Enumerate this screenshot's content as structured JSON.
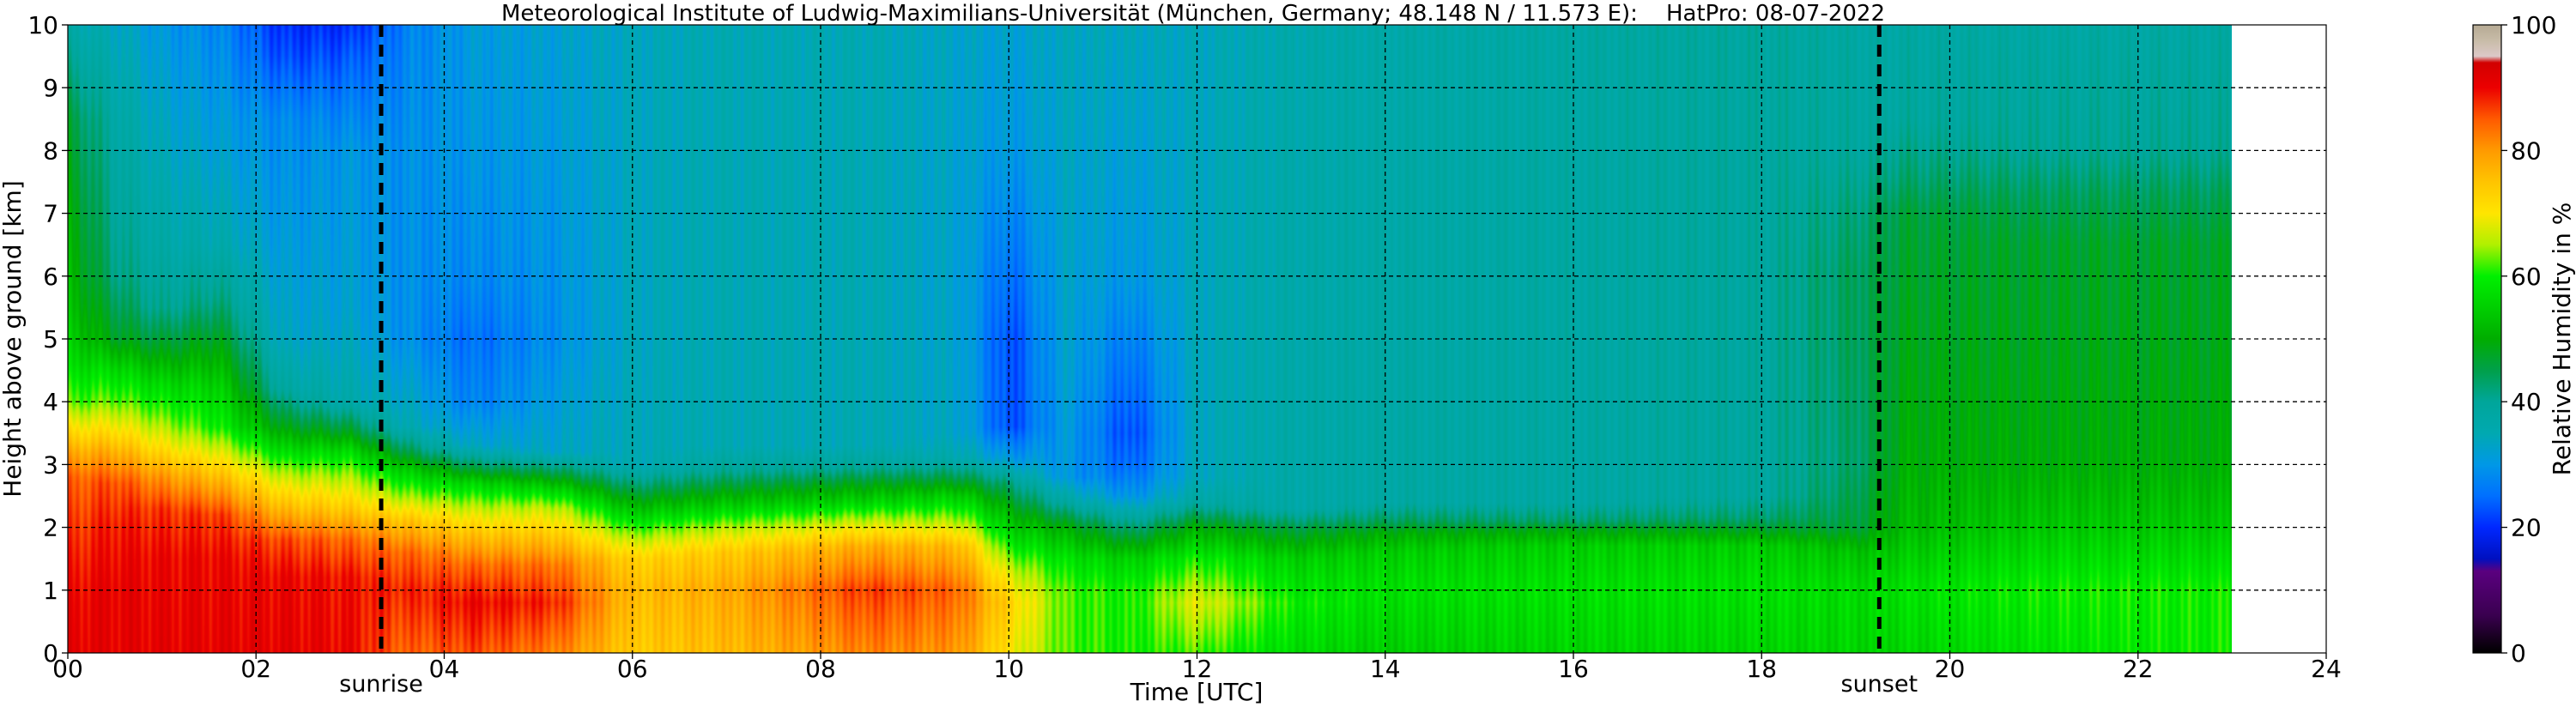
{
  "chart_data": {
    "type": "heatmap",
    "title": "Meteorological Institute of Ludwig-Maximilians-Universität (München, Germany; 48.148 N / 11.573 E):    HatPro: 08-07-2022",
    "xlabel": "Time [UTC]",
    "ylabel": "Height above ground [km]",
    "xlim": [
      0,
      24
    ],
    "ylim": [
      0,
      10
    ],
    "data_extent_x": [
      0,
      23
    ],
    "x_ticks": [
      "00",
      "02",
      "04",
      "06",
      "08",
      "10",
      "12",
      "14",
      "16",
      "18",
      "20",
      "22",
      "24"
    ],
    "x_tick_values": [
      0,
      2,
      4,
      6,
      8,
      10,
      12,
      14,
      16,
      18,
      20,
      22,
      24
    ],
    "y_ticks": [
      "0",
      "1",
      "2",
      "3",
      "4",
      "5",
      "6",
      "7",
      "8",
      "9",
      "10"
    ],
    "y_tick_values": [
      0,
      1,
      2,
      3,
      4,
      5,
      6,
      7,
      8,
      9,
      10
    ],
    "grid": true,
    "vlines": [
      {
        "x": 3.33,
        "label": "sunrise"
      },
      {
        "x": 19.25,
        "label": "sunset"
      }
    ],
    "colorbar": {
      "label": "Relative Humidity in %",
      "range": [
        0,
        100
      ],
      "ticks": [
        "0",
        "20",
        "40",
        "60",
        "80",
        "100"
      ],
      "tick_values": [
        0,
        20,
        40,
        60,
        80,
        100
      ],
      "stops": [
        {
          "v": 0,
          "c": "#000000"
        },
        {
          "v": 2.5,
          "c": "#180020"
        },
        {
          "v": 6,
          "c": "#3a0050"
        },
        {
          "v": 13,
          "c": "#5a007f"
        },
        {
          "v": 15,
          "c": "#0010c0"
        },
        {
          "v": 20,
          "c": "#0028ff"
        },
        {
          "v": 25,
          "c": "#0070ff"
        },
        {
          "v": 30,
          "c": "#0098e6"
        },
        {
          "v": 35,
          "c": "#00a9b0"
        },
        {
          "v": 40,
          "c": "#00a69a"
        },
        {
          "v": 45,
          "c": "#00a04a"
        },
        {
          "v": 50,
          "c": "#00ad00"
        },
        {
          "v": 55,
          "c": "#00cf00"
        },
        {
          "v": 60,
          "c": "#00f000"
        },
        {
          "v": 65,
          "c": "#b0f000"
        },
        {
          "v": 70,
          "c": "#ffe500"
        },
        {
          "v": 75,
          "c": "#ffc400"
        },
        {
          "v": 80,
          "c": "#ff9a00"
        },
        {
          "v": 85,
          "c": "#ff5a00"
        },
        {
          "v": 90,
          "c": "#ec0000"
        },
        {
          "v": 94,
          "c": "#d10000"
        },
        {
          "v": 95,
          "c": "#dcc8c8"
        },
        {
          "v": 97.5,
          "c": "#c8bca8"
        },
        {
          "v": 100,
          "c": "#b5a993"
        }
      ]
    },
    "humidity_profiles": [
      {
        "t": 0.0,
        "rh": [
          [
            0,
            91
          ],
          [
            0.8,
            90
          ],
          [
            1.5,
            88
          ],
          [
            2.2,
            86
          ],
          [
            2.8,
            84
          ],
          [
            3.2,
            78
          ],
          [
            3.6,
            70
          ],
          [
            4.0,
            62
          ],
          [
            4.6,
            57
          ],
          [
            5.5,
            53
          ],
          [
            7.0,
            50
          ],
          [
            8.5,
            46
          ],
          [
            9.3,
            41
          ],
          [
            10,
            37
          ]
        ]
      },
      {
        "t": 0.5,
        "rh": [
          [
            0,
            91
          ],
          [
            1.0,
            91
          ],
          [
            2.0,
            89
          ],
          [
            2.7,
            86
          ],
          [
            3.2,
            78
          ],
          [
            3.6,
            70
          ],
          [
            4.0,
            63
          ],
          [
            4.5,
            57
          ],
          [
            5.0,
            48
          ],
          [
            6.0,
            42
          ],
          [
            7.0,
            40
          ],
          [
            8.5,
            38
          ],
          [
            10,
            34
          ]
        ]
      },
      {
        "t": 1.0,
        "rh": [
          [
            0,
            91
          ],
          [
            1.5,
            90
          ],
          [
            2.3,
            87
          ],
          [
            2.8,
            80
          ],
          [
            3.3,
            70
          ],
          [
            3.8,
            62
          ],
          [
            4.3,
            56
          ],
          [
            4.8,
            48
          ],
          [
            5.5,
            40
          ],
          [
            6.5,
            37
          ],
          [
            8.0,
            34
          ],
          [
            10,
            30
          ]
        ]
      },
      {
        "t": 1.6,
        "rh": [
          [
            0,
            91
          ],
          [
            1.5,
            90
          ],
          [
            2.2,
            87
          ],
          [
            2.7,
            78
          ],
          [
            3.2,
            68
          ],
          [
            3.6,
            60
          ],
          [
            4.2,
            56
          ],
          [
            4.8,
            50
          ],
          [
            5.6,
            42
          ],
          [
            6.5,
            36
          ],
          [
            8.0,
            32
          ],
          [
            10,
            28
          ]
        ]
      },
      {
        "t": 2.3,
        "rh": [
          [
            0,
            91
          ],
          [
            1.2,
            90
          ],
          [
            1.8,
            86
          ],
          [
            2.3,
            76
          ],
          [
            2.8,
            66
          ],
          [
            3.2,
            57
          ],
          [
            3.6,
            48
          ],
          [
            4.2,
            38
          ],
          [
            5.0,
            33
          ],
          [
            7.0,
            30
          ],
          [
            8.5,
            28
          ],
          [
            9.5,
            22
          ],
          [
            10,
            20
          ]
        ]
      },
      {
        "t": 3.0,
        "rh": [
          [
            0,
            90
          ],
          [
            1.2,
            89
          ],
          [
            1.8,
            84
          ],
          [
            2.3,
            74
          ],
          [
            2.8,
            65
          ],
          [
            3.2,
            57
          ],
          [
            3.5,
            48
          ],
          [
            4.0,
            36
          ],
          [
            5.5,
            32
          ],
          [
            8.0,
            30
          ],
          [
            9.5,
            23
          ],
          [
            10,
            20
          ]
        ]
      },
      {
        "t": 3.6,
        "rh": [
          [
            0,
            84
          ],
          [
            1.0,
            88
          ],
          [
            1.6,
            84
          ],
          [
            2.1,
            75
          ],
          [
            2.5,
            64
          ],
          [
            2.9,
            55
          ],
          [
            3.2,
            45
          ],
          [
            3.6,
            35
          ],
          [
            5.0,
            29
          ],
          [
            8.0,
            29
          ],
          [
            10,
            27
          ]
        ]
      },
      {
        "t": 4.3,
        "rh": [
          [
            0,
            86
          ],
          [
            0.8,
            90
          ],
          [
            1.4,
            84
          ],
          [
            1.9,
            75
          ],
          [
            2.3,
            66
          ],
          [
            2.7,
            56
          ],
          [
            2.9,
            47
          ],
          [
            3.3,
            33
          ],
          [
            4.0,
            27
          ],
          [
            5.0,
            25
          ],
          [
            6.0,
            28
          ],
          [
            8.0,
            30
          ],
          [
            10,
            31
          ]
        ]
      },
      {
        "t": 5.2,
        "rh": [
          [
            0,
            82
          ],
          [
            0.8,
            88
          ],
          [
            1.4,
            83
          ],
          [
            1.9,
            74
          ],
          [
            2.3,
            66
          ],
          [
            2.6,
            56
          ],
          [
            2.85,
            46
          ],
          [
            3.2,
            33
          ],
          [
            5.0,
            29
          ],
          [
            8.0,
            31
          ],
          [
            10,
            32
          ]
        ]
      },
      {
        "t": 6.0,
        "rh": [
          [
            0,
            74
          ],
          [
            1.0,
            76
          ],
          [
            1.5,
            73
          ],
          [
            1.8,
            66
          ],
          [
            2.1,
            58
          ],
          [
            2.4,
            50
          ],
          [
            2.7,
            42
          ],
          [
            3.0,
            35
          ],
          [
            5.0,
            34
          ],
          [
            8.0,
            34
          ],
          [
            10,
            34
          ]
        ]
      },
      {
        "t": 7.0,
        "rh": [
          [
            0,
            76
          ],
          [
            1.0,
            78
          ],
          [
            1.6,
            74
          ],
          [
            2.0,
            65
          ],
          [
            2.3,
            56
          ],
          [
            2.6,
            48
          ],
          [
            2.9,
            40
          ],
          [
            3.3,
            35
          ],
          [
            10,
            35
          ]
        ]
      },
      {
        "t": 8.5,
        "rh": [
          [
            0,
            82
          ],
          [
            1.0,
            87
          ],
          [
            1.7,
            78
          ],
          [
            2.1,
            66
          ],
          [
            2.4,
            56
          ],
          [
            2.7,
            48
          ],
          [
            2.95,
            40
          ],
          [
            3.3,
            35
          ],
          [
            10,
            35
          ]
        ]
      },
      {
        "t": 9.5,
        "rh": [
          [
            0,
            80
          ],
          [
            1.0,
            84
          ],
          [
            1.7,
            76
          ],
          [
            2.1,
            65
          ],
          [
            2.5,
            55
          ],
          [
            2.8,
            45
          ],
          [
            3.1,
            36
          ],
          [
            3.5,
            33
          ],
          [
            6.0,
            32
          ],
          [
            10,
            33
          ]
        ]
      },
      {
        "t": 10.0,
        "rh": [
          [
            0,
            70
          ],
          [
            0.8,
            73
          ],
          [
            1.3,
            67
          ],
          [
            1.8,
            58
          ],
          [
            2.3,
            50
          ],
          [
            2.7,
            42
          ],
          [
            3.1,
            30
          ],
          [
            3.6,
            22
          ],
          [
            5.0,
            22
          ],
          [
            6.5,
            26
          ],
          [
            8.0,
            30
          ],
          [
            10,
            32
          ]
        ]
      },
      {
        "t": 10.6,
        "rh": [
          [
            0,
            62
          ],
          [
            1.0,
            62
          ],
          [
            1.5,
            58
          ],
          [
            2.0,
            50
          ],
          [
            2.4,
            38
          ],
          [
            2.8,
            30
          ],
          [
            4.5,
            32
          ],
          [
            10,
            34
          ]
        ]
      },
      {
        "t": 11.3,
        "rh": [
          [
            0,
            60
          ],
          [
            1.0,
            60
          ],
          [
            1.5,
            55
          ],
          [
            2.0,
            42
          ],
          [
            2.5,
            29
          ],
          [
            3.0,
            24
          ],
          [
            3.5,
            22
          ],
          [
            4.5,
            25
          ],
          [
            6.0,
            30
          ],
          [
            10,
            34
          ]
        ]
      },
      {
        "t": 12.0,
        "rh": [
          [
            0,
            62
          ],
          [
            0.8,
            68
          ],
          [
            1.5,
            60
          ],
          [
            2.0,
            50
          ],
          [
            2.4,
            38
          ],
          [
            2.8,
            34
          ],
          [
            10,
            34
          ]
        ]
      },
      {
        "t": 13.0,
        "rh": [
          [
            0,
            57
          ],
          [
            0.8,
            60
          ],
          [
            1.5,
            55
          ],
          [
            2.0,
            45
          ],
          [
            2.3,
            37
          ],
          [
            10,
            36
          ]
        ]
      },
      {
        "t": 14.0,
        "rh": [
          [
            0,
            55
          ],
          [
            1.0,
            58
          ],
          [
            1.6,
            55
          ],
          [
            1.9,
            50
          ],
          [
            2.1,
            44
          ],
          [
            2.4,
            38
          ],
          [
            10,
            37
          ]
        ]
      },
      {
        "t": 16.0,
        "rh": [
          [
            0,
            56
          ],
          [
            1.0,
            58
          ],
          [
            1.7,
            55
          ],
          [
            1.95,
            49
          ],
          [
            2.1,
            43
          ],
          [
            2.4,
            38
          ],
          [
            10,
            38
          ]
        ]
      },
      {
        "t": 18.0,
        "rh": [
          [
            0,
            56
          ],
          [
            1.0,
            58
          ],
          [
            1.7,
            55
          ],
          [
            1.95,
            48
          ],
          [
            2.15,
            43
          ],
          [
            2.5,
            39
          ],
          [
            10,
            39
          ]
        ]
      },
      {
        "t": 19.0,
        "rh": [
          [
            0,
            56
          ],
          [
            1.0,
            57
          ],
          [
            1.6,
            53
          ],
          [
            2.0,
            46
          ],
          [
            3.0,
            43
          ],
          [
            5.0,
            44
          ],
          [
            6.0,
            44
          ],
          [
            7.0,
            42
          ],
          [
            8.0,
            39
          ],
          [
            10,
            38
          ]
        ]
      },
      {
        "t": 19.5,
        "rh": [
          [
            0,
            56
          ],
          [
            1.0,
            58
          ],
          [
            2.0,
            52
          ],
          [
            3.0,
            50
          ],
          [
            4.0,
            49
          ],
          [
            5.0,
            48
          ],
          [
            6.0,
            47
          ],
          [
            7.0,
            46
          ],
          [
            7.5,
            43
          ],
          [
            8.5,
            39
          ],
          [
            10,
            38
          ]
        ]
      },
      {
        "t": 21.0,
        "rh": [
          [
            0,
            58
          ],
          [
            1.0,
            60
          ],
          [
            2.0,
            54
          ],
          [
            3.0,
            50
          ],
          [
            5.0,
            48
          ],
          [
            6.5,
            47
          ],
          [
            7.3,
            44
          ],
          [
            8.0,
            40
          ],
          [
            10,
            38
          ]
        ]
      },
      {
        "t": 23.0,
        "rh": [
          [
            0,
            60
          ],
          [
            1.0,
            60
          ],
          [
            2.0,
            54
          ],
          [
            3.0,
            50
          ],
          [
            5.0,
            48
          ],
          [
            6.5,
            47
          ],
          [
            7.3,
            44
          ],
          [
            8.0,
            40
          ],
          [
            10,
            38
          ]
        ]
      }
    ]
  }
}
